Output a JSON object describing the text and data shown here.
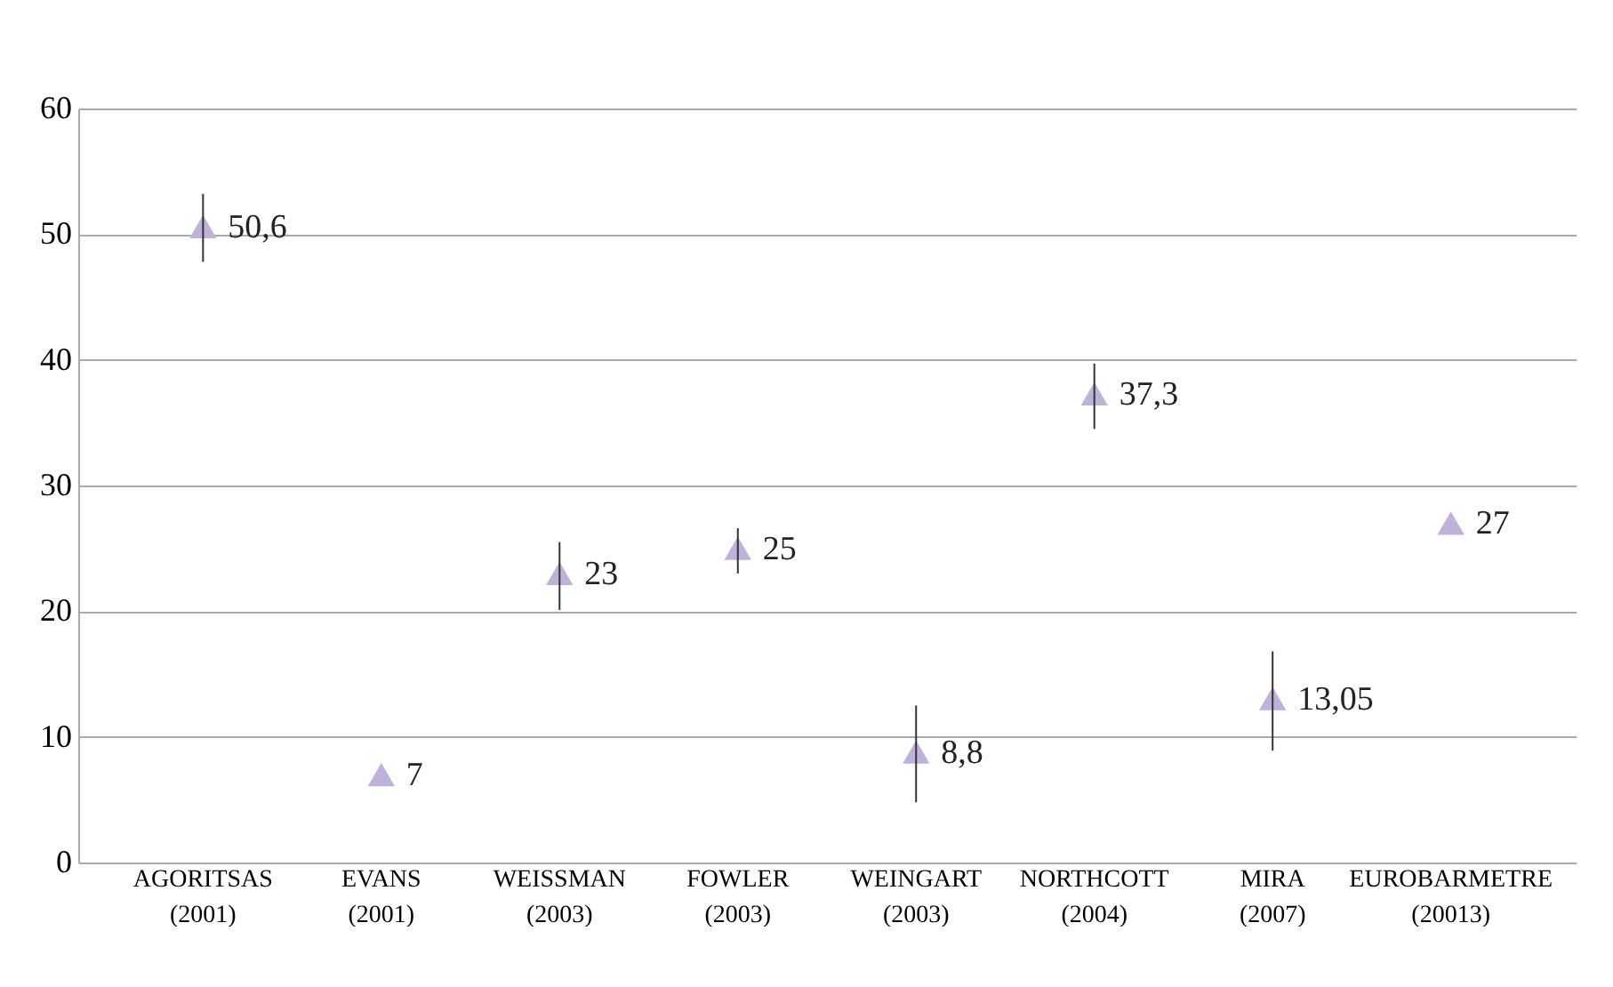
{
  "chart_data": {
    "type": "scatter",
    "categories": [
      "AGORITSAS\n(2001)",
      "EVANS\n(2001)",
      "WEISSMAN\n(2003)",
      "FOWLER\n(2003)",
      "WEINGART\n(2003)",
      "NORTHCOTT\n(2004)",
      "MIRA\n(2007)",
      "EUROBARMETRE\n(20013)"
    ],
    "series": [
      {
        "color": "#bfb1d9",
        "values": [
          50.6,
          7,
          23,
          25,
          8.8,
          37.3,
          13.05,
          27
        ],
        "errors": [
          [
            47.8,
            53.2
          ],
          null,
          [
            20.1,
            25.5
          ],
          [
            23.0,
            26.6
          ],
          [
            4.8,
            12.5
          ],
          [
            34.5,
            39.7
          ],
          [
            8.9,
            16.8
          ],
          null
        ],
        "value_labels": [
          "50,6",
          "7",
          "23",
          "25",
          "8,8",
          "37,3",
          "13,05",
          "27"
        ]
      }
    ],
    "ylim": [
      0,
      60
    ],
    "yticks": [
      0,
      10,
      20,
      30,
      40,
      50,
      60
    ],
    "grid": "y",
    "marker": "triangle"
  }
}
